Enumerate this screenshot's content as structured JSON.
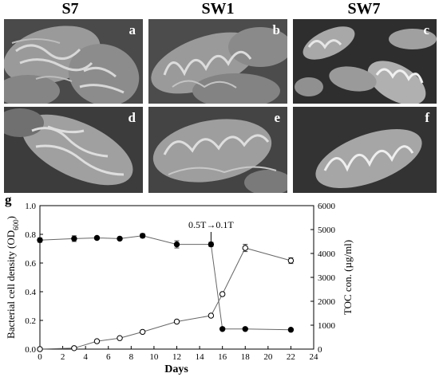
{
  "columns": [
    "S7",
    "SW1",
    "SW7"
  ],
  "panels": [
    {
      "letter": "a"
    },
    {
      "letter": "b"
    },
    {
      "letter": "c"
    },
    {
      "letter": "d"
    },
    {
      "letter": "e"
    },
    {
      "letter": "f"
    }
  ],
  "image_kind": "scanning electron micrograph",
  "chart_data": {
    "type": "line",
    "panel_label": "g",
    "xlabel": "Days",
    "ylabel_left": "Bacterial cell density (OD600)",
    "ylabel_right": "TOC con. (µg/ml)",
    "xlim": [
      0,
      24
    ],
    "ylim_left": [
      0,
      1.0
    ],
    "ylim_right": [
      0,
      6000
    ],
    "x_ticks": [
      0,
      2,
      4,
      6,
      8,
      10,
      12,
      14,
      16,
      18,
      20,
      22,
      24
    ],
    "y_ticks_left": [
      0.0,
      0.2,
      0.4,
      0.6,
      0.8,
      1.0
    ],
    "y_ticks_right": [
      0,
      1000,
      2000,
      3000,
      4000,
      5000,
      6000
    ],
    "annotation": {
      "text": "0.5T→0.1T",
      "x": 15
    },
    "series": [
      {
        "marker": "filled",
        "axis": "left",
        "x": [
          0,
          3,
          5,
          7,
          9,
          12,
          15,
          16,
          18,
          22
        ],
        "y": [
          0.76,
          0.77,
          0.775,
          0.77,
          0.79,
          0.73,
          0.73,
          0.14,
          0.14,
          0.135
        ],
        "err": [
          0.015,
          0.02,
          0.01,
          0.01,
          0.015,
          0.025,
          0.015,
          0.005,
          0.005,
          0.005
        ]
      },
      {
        "marker": "open",
        "axis": "right",
        "x": [
          0,
          3,
          5,
          7,
          9,
          12,
          15,
          16,
          18,
          22
        ],
        "y": [
          0,
          40,
          330,
          460,
          720,
          1150,
          1400,
          2300,
          4230,
          3700
        ],
        "err": [
          0,
          10,
          20,
          20,
          30,
          40,
          50,
          60,
          150,
          120
        ]
      }
    ]
  }
}
